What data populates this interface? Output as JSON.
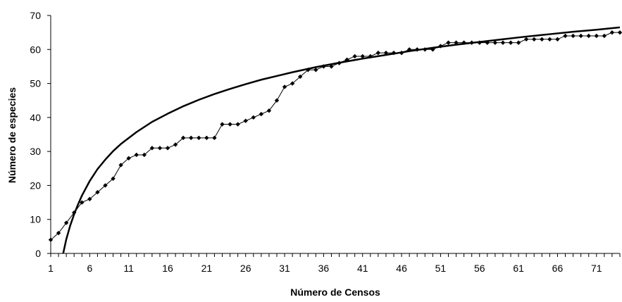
{
  "chart_data": {
    "type": "line",
    "xlabel": "Número de Censos",
    "ylabel": "Número de especies",
    "xlim": [
      1,
      74
    ],
    "ylim": [
      0,
      70
    ],
    "yticks": [
      0,
      10,
      20,
      30,
      40,
      50,
      60,
      70
    ],
    "xticks": [
      1,
      6,
      11,
      16,
      21,
      26,
      31,
      36,
      41,
      46,
      51,
      56,
      61,
      66,
      71
    ],
    "grid": false,
    "legend": "none",
    "series": [
      {
        "style": "line-with-diamond-markers",
        "color": "#000000",
        "x": [
          1,
          2,
          3,
          4,
          5,
          6,
          7,
          8,
          9,
          10,
          11,
          12,
          13,
          14,
          15,
          16,
          17,
          18,
          19,
          20,
          21,
          22,
          23,
          24,
          25,
          26,
          27,
          28,
          29,
          30,
          31,
          32,
          33,
          34,
          35,
          36,
          37,
          38,
          39,
          40,
          41,
          42,
          43,
          44,
          45,
          46,
          47,
          48,
          49,
          50,
          51,
          52,
          53,
          54,
          55,
          56,
          57,
          58,
          59,
          60,
          61,
          62,
          63,
          64,
          65,
          66,
          67,
          68,
          69,
          70,
          71,
          72,
          73,
          74
        ],
        "values": [
          4,
          6,
          9,
          12,
          15,
          16,
          18,
          20,
          22,
          26,
          28,
          29,
          29,
          31,
          31,
          31,
          32,
          34,
          34,
          34,
          34,
          34,
          38,
          38,
          38,
          39,
          40,
          41,
          42,
          45,
          49,
          50,
          52,
          54,
          54,
          55,
          55,
          56,
          57,
          58,
          58,
          58,
          59,
          59,
          59,
          59,
          60,
          60,
          60,
          60,
          61,
          62,
          62,
          62,
          62,
          62,
          62,
          62,
          62,
          62,
          62,
          63,
          63,
          63,
          63,
          63,
          64,
          64,
          64,
          64,
          64,
          64,
          65,
          65
        ]
      },
      {
        "style": "fitted-log-curve",
        "color": "#000000",
        "x": [
          2.6,
          3,
          3.5,
          4,
          4.5,
          5,
          6,
          7,
          8,
          9,
          10,
          12,
          14,
          16,
          18,
          20,
          22,
          24,
          26,
          28,
          30,
          32,
          35,
          38,
          41,
          44,
          47,
          50,
          53,
          56,
          59,
          62,
          65,
          68,
          71,
          74
        ],
        "values": [
          0,
          4.2,
          8.2,
          11.5,
          14.4,
          17.0,
          21.3,
          24.8,
          27.6,
          30.1,
          32.2,
          35.7,
          38.7,
          41.1,
          43.3,
          45.2,
          46.9,
          48.4,
          49.8,
          51.1,
          52.2,
          53.3,
          54.8,
          56.1,
          57.3,
          58.4,
          59.5,
          60.5,
          61.4,
          62.2,
          63.0,
          63.8,
          64.5,
          65.2,
          65.8,
          66.5
        ]
      }
    ]
  }
}
